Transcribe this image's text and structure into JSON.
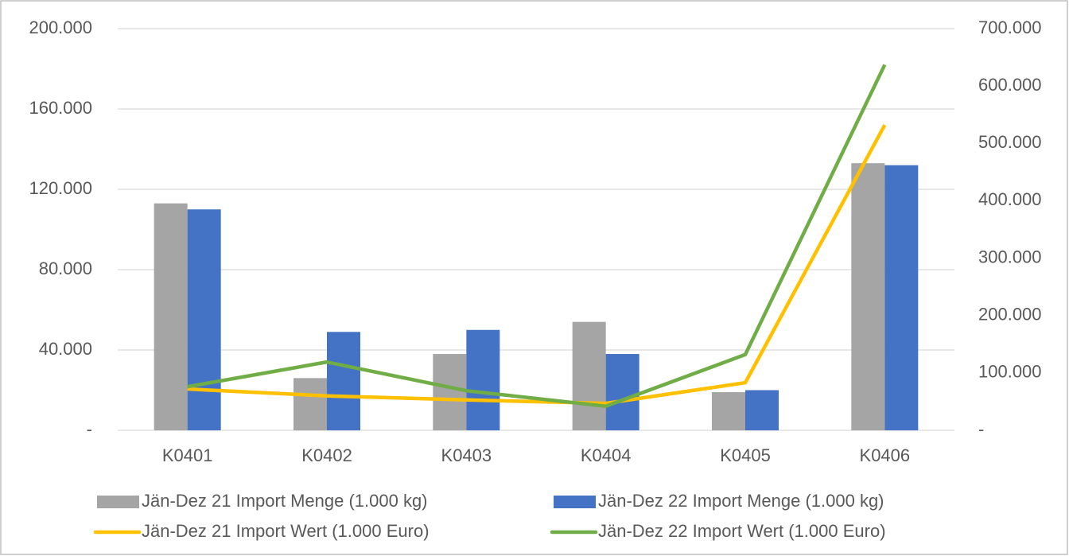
{
  "chart_data": {
    "type": "bar",
    "categories": [
      "K0401",
      "K0402",
      "K0403",
      "K0404",
      "K0405",
      "K0406"
    ],
    "series": [
      {
        "name": "Jän-Dez 21 Import Menge (1.000 kg)",
        "color": "#a5a5a5",
        "type": "bar",
        "values": [
          113000,
          26000,
          38000,
          54000,
          19000,
          133000
        ]
      },
      {
        "name": "Jän-Dez 22 Import Menge (1.000 kg)",
        "color": "#4472c4",
        "type": "bar",
        "values": [
          110000,
          49000,
          50000,
          38000,
          20000,
          132000
        ]
      },
      {
        "name": "Jän-Dez 21 Import Wert (1.000 Euro)",
        "color": "#ffc000",
        "type": "line",
        "axis": "y2",
        "values": [
          72000,
          60000,
          53000,
          47000,
          83000,
          532000
        ]
      },
      {
        "name": "Jän-Dez 22 Import Wert (1.000 Euro)",
        "color": "#70ad47",
        "type": "line",
        "axis": "y2",
        "values": [
          76000,
          119000,
          69000,
          42000,
          132000,
          637000
        ]
      }
    ],
    "ylim": [
      0,
      200000
    ],
    "yticks": [
      {
        "value": 0,
        "label": "-"
      },
      {
        "value": 40000,
        "label": "40.000"
      },
      {
        "value": 80000,
        "label": "80.000"
      },
      {
        "value": 120000,
        "label": "120.000"
      },
      {
        "value": 160000,
        "label": "160.000"
      },
      {
        "value": 200000,
        "label": "200.000"
      }
    ],
    "y2lim": [
      0,
      700000
    ],
    "y2ticks": [
      {
        "value": 0,
        "label": "-"
      },
      {
        "value": 100000,
        "label": "100.000"
      },
      {
        "value": 200000,
        "label": "200.000"
      },
      {
        "value": 300000,
        "label": "300.000"
      },
      {
        "value": 400000,
        "label": "400.000"
      },
      {
        "value": 500000,
        "label": "500.000"
      },
      {
        "value": 600000,
        "label": "600.000"
      },
      {
        "value": 700000,
        "label": "700.000"
      }
    ],
    "grid": true,
    "legend": "bottom"
  }
}
